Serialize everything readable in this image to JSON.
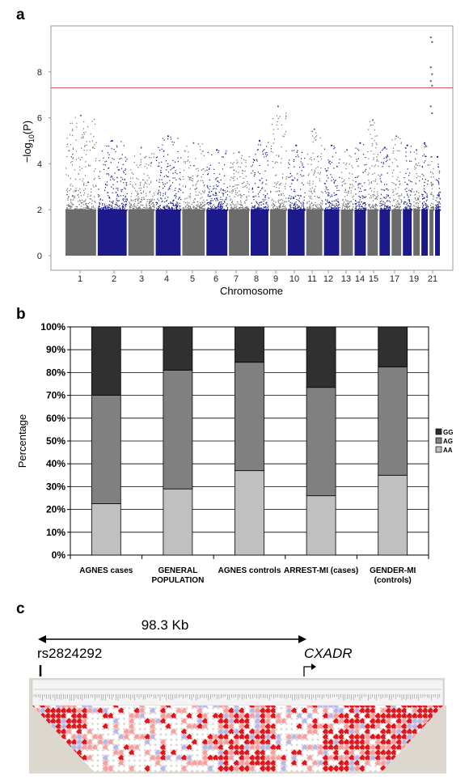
{
  "panels": {
    "a": "a",
    "b": "b",
    "c": "c"
  },
  "chart_data": [
    {
      "type": "scatter",
      "subtype": "manhattan",
      "ylabel_prefix": "−log",
      "ylabel_sub": "10",
      "ylabel_suffix": "(P)",
      "xlabel": "Chromosome",
      "ylim": [
        0,
        10
      ],
      "yticks": [
        "0",
        "2",
        "4",
        "6",
        "8"
      ],
      "significance_threshold": 7.3,
      "threshold_color": "#c0504d",
      "grid": false,
      "colors": [
        "#6b6b6b",
        "#1c1a8a"
      ],
      "chromosome_ticks": [
        "1",
        "2",
        "3",
        "4",
        "5",
        "6",
        "7",
        "8",
        "9",
        "10",
        "11",
        "12",
        "13",
        "14",
        "15",
        "17",
        "19",
        "21"
      ],
      "chromosome_peaks": [
        6.1,
        5.0,
        4.7,
        5.2,
        4.9,
        4.6,
        4.5,
        5.0,
        6.5,
        4.8,
        5.5,
        4.8,
        4.6,
        4.9,
        5.9,
        4.7,
        5.2,
        4.8,
        4.6,
        4.9,
        9.5,
        4.3
      ],
      "top_hits": [
        {
          "chromosome": 21,
          "value": 9.5
        },
        {
          "chromosome": 21,
          "value": 9.3
        },
        {
          "chromosome": 21,
          "value": 8.2
        },
        {
          "chromosome": 21,
          "value": 7.9
        },
        {
          "chromosome": 21,
          "value": 7.6
        },
        {
          "chromosome": 21,
          "value": 7.4
        },
        {
          "chromosome": 21,
          "value": 6.5
        },
        {
          "chromosome": 21,
          "value": 6.2
        }
      ]
    },
    {
      "type": "bar",
      "stacked": true,
      "normalized": true,
      "ylabel": "Percentage",
      "xlabel": "",
      "ylim": [
        0,
        100
      ],
      "yticks": [
        "0%",
        "10%",
        "20%",
        "30%",
        "40%",
        "50%",
        "60%",
        "70%",
        "80%",
        "90%",
        "100%"
      ],
      "grid": true,
      "legend_position": "right",
      "categories": [
        [
          "AGNES cases"
        ],
        [
          "GENERAL",
          "POPULATION"
        ],
        [
          "AGNES controls"
        ],
        [
          "ARREST-MI (cases)"
        ],
        [
          "GENDER-MI",
          "(controls)"
        ]
      ],
      "series": [
        {
          "name": "AA",
          "color": "#c0c0c0",
          "values": [
            22.5,
            29,
            37,
            26,
            35
          ]
        },
        {
          "name": "AG",
          "color": "#808080",
          "values": [
            47.5,
            52,
            47.5,
            47.5,
            47.5
          ]
        },
        {
          "name": "GG",
          "color": "#303030",
          "values": [
            30,
            19,
            15.5,
            26.5,
            17.5
          ]
        }
      ]
    },
    {
      "type": "diagram",
      "distance_label": "98.3 Kb",
      "snp_label": "rs2824292",
      "gene_label": "CXADR",
      "ld_colors": [
        "#e0141c",
        "#f6a0a0",
        "#ffffff",
        "#b8b8e8"
      ]
    }
  ]
}
